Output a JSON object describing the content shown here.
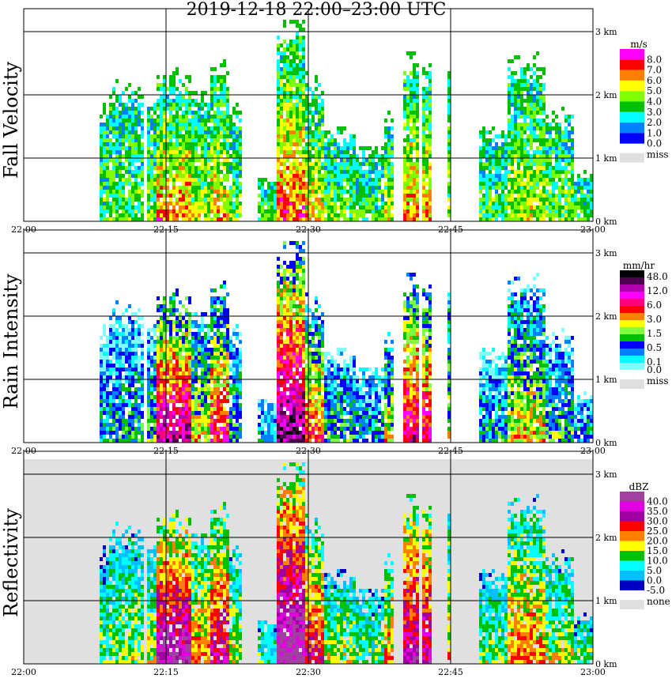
{
  "title": "2019-12-18   22:00–23:00 UTC",
  "chart_data": [
    {
      "type": "heatmap",
      "name": "fall-velocity",
      "ylabel": "Fall Velocity",
      "unit": "m/s",
      "background": "white",
      "legend_labels": [
        "8.0",
        "7.0",
        "6.0",
        "5.0",
        "4.0",
        "3.0",
        "2.0",
        "1.0",
        "0.0"
      ],
      "legend_colors": [
        "#ff00ff",
        "#ff0000",
        "#ff8000",
        "#ffff00",
        "#80ff00",
        "#00c000",
        "#00ffff",
        "#0080ff",
        "#0000ff"
      ],
      "missing_label": "miss"
    },
    {
      "type": "heatmap",
      "name": "rain-intensity",
      "ylabel": "Rain Intensity",
      "unit": "mm/hr",
      "background": "white",
      "legend_labels": [
        "48.0",
        "12.0",
        "6.0",
        "3.0",
        "1.5",
        "0.5",
        "0.1",
        "0.0"
      ],
      "legend_colors": [
        "#000000",
        "#500050",
        "#b000b0",
        "#ff00ff",
        "#ff0080",
        "#ff0000",
        "#ff8000",
        "#ffff00",
        "#80ff40",
        "#00c000",
        "#0000ff",
        "#0080ff",
        "#00ffff",
        "#80ffff"
      ],
      "missing_label": "miss"
    },
    {
      "type": "heatmap",
      "name": "reflectivity",
      "ylabel": "Reflectivity",
      "unit": "dBZ",
      "background": "#e0e0e0",
      "legend_labels": [
        "40.0",
        "35.0",
        "30.0",
        "25.0",
        "20.0",
        "15.0",
        "10.0",
        "5.0",
        "0.0",
        "-5.0"
      ],
      "legend_colors": [
        "#a040a0",
        "#e000e0",
        "#a000a0",
        "#ff0000",
        "#ff8000",
        "#ffff00",
        "#00c000",
        "#00ffff",
        "#00c0ff",
        "#0000c0"
      ],
      "missing_label": "none"
    }
  ],
  "x_ticks": [
    "22:00",
    "22:15",
    "22:30",
    "22:45",
    "23:00"
  ],
  "y_ticks": [
    "0 km",
    "1 km",
    "2 km",
    "3 km"
  ],
  "xlim_minutes": [
    0,
    60
  ],
  "ylim_km": [
    0,
    3.2
  ],
  "echo_columns": [
    {
      "start": 8,
      "end": 9,
      "top_km": 1.9,
      "intensity": 0.3
    },
    {
      "start": 9,
      "end": 12.5,
      "top_km": 2.2,
      "intensity": 0.35
    },
    {
      "start": 13,
      "end": 14,
      "top_km": 2.1,
      "intensity": 0.4
    },
    {
      "start": 14,
      "end": 17.5,
      "top_km": 2.4,
      "intensity": 0.9
    },
    {
      "start": 17.5,
      "end": 19.5,
      "top_km": 2.1,
      "intensity": 0.55
    },
    {
      "start": 19.5,
      "end": 21.5,
      "top_km": 2.5,
      "intensity": 0.75
    },
    {
      "start": 21.5,
      "end": 23,
      "top_km": 1.9,
      "intensity": 0.4
    },
    {
      "start": 24.5,
      "end": 26.5,
      "top_km": 0.7,
      "intensity": 0.3
    },
    {
      "start": 26.5,
      "end": 29.5,
      "top_km": 3.2,
      "intensity": 1.0
    },
    {
      "start": 29.5,
      "end": 31.5,
      "top_km": 2.3,
      "intensity": 0.7
    },
    {
      "start": 31.5,
      "end": 35,
      "top_km": 1.5,
      "intensity": 0.4
    },
    {
      "start": 35,
      "end": 38,
      "top_km": 1.2,
      "intensity": 0.3
    },
    {
      "start": 38,
      "end": 39,
      "top_km": 1.8,
      "intensity": 0.55
    },
    {
      "start": 40,
      "end": 41.5,
      "top_km": 2.7,
      "intensity": 0.85
    },
    {
      "start": 42,
      "end": 43,
      "top_km": 2.6,
      "intensity": 0.8
    },
    {
      "start": 44.5,
      "end": 45,
      "top_km": 2.5,
      "intensity": 0.5
    },
    {
      "start": 48,
      "end": 51,
      "top_km": 1.5,
      "intensity": 0.35
    },
    {
      "start": 51,
      "end": 55,
      "top_km": 2.6,
      "intensity": 0.55
    },
    {
      "start": 55,
      "end": 58,
      "top_km": 1.8,
      "intensity": 0.4
    },
    {
      "start": 58,
      "end": 60,
      "top_km": 0.8,
      "intensity": 0.3
    }
  ]
}
